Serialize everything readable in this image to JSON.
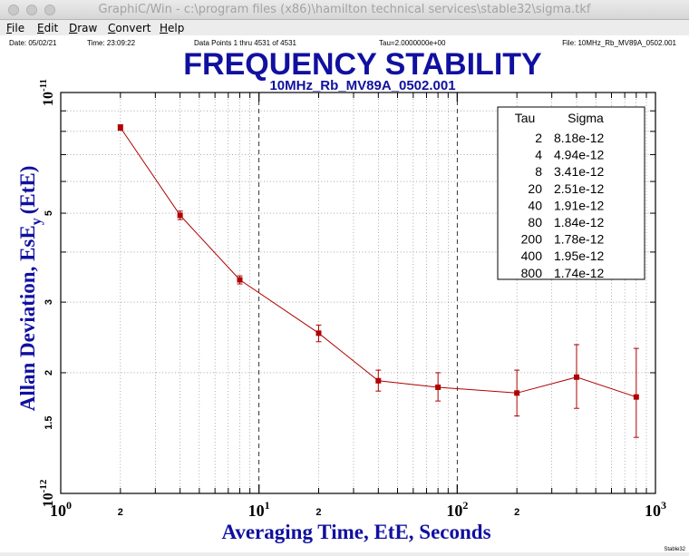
{
  "window": {
    "title": "GraphiC/Win - c:\\program files (x86)\\hamilton technical services\\stable32\\sigma.tkf"
  },
  "menu": [
    {
      "label": "File",
      "key": "F",
      "rest": "ile"
    },
    {
      "label": "Edit",
      "key": "E",
      "rest": "dit"
    },
    {
      "label": "Draw",
      "key": "D",
      "rest": "raw"
    },
    {
      "label": "Convert",
      "key": "C",
      "rest": "onvert"
    },
    {
      "label": "Help",
      "key": "H",
      "rest": "elp"
    }
  ],
  "header": {
    "date": "Date: 05/02/21",
    "time": "Time: 23:09:22",
    "points": "Data Points 1 thru 4531 of 4531",
    "tau": "Tau=2.0000000e+00",
    "file": "File: 10MHz_Rb_MV89A_0502.001"
  },
  "footer": {
    "tag": "Stable32"
  },
  "colors": {
    "title": "#1010a0",
    "series": "#b00000",
    "axis_text": "#000000"
  },
  "chart_data": {
    "type": "scatter",
    "title": "FREQUENCY STABILITY",
    "subtitle": "10MHz_Rb_MV89A_0502.001",
    "xlabel": "Averaging Time, EtE, Seconds",
    "ylabel": "Allan Deviation, EsE",
    "ylabel_sub": "y",
    "ylabel_suffix": "(EtE)",
    "xscale": "log",
    "yscale": "log",
    "xlim": [
      1,
      1000
    ],
    "ylim": [
      1e-12,
      1e-11
    ],
    "grid": "dotted",
    "x_tick_labels": [
      {
        "value": 1,
        "base": "10",
        "exp": "0"
      },
      {
        "value": 2,
        "label": "2"
      },
      {
        "value": 10,
        "base": "10",
        "exp": "1"
      },
      {
        "value": 20,
        "label": "2"
      },
      {
        "value": 100,
        "base": "10",
        "exp": "2"
      },
      {
        "value": 200,
        "label": "2"
      },
      {
        "value": 1000,
        "base": "10",
        "exp": "3"
      }
    ],
    "y_tick_labels": [
      {
        "value": 1e-11,
        "base": "10",
        "exp": "-11"
      },
      {
        "value": 5e-12,
        "label": "5"
      },
      {
        "value": 3e-12,
        "label": "3"
      },
      {
        "value": 2e-12,
        "label": "2"
      },
      {
        "value": 1.5e-12,
        "label": "1.5"
      },
      {
        "value": 1e-12,
        "base": "10",
        "exp": "-12"
      }
    ],
    "series": [
      {
        "x": [
          2,
          4,
          8,
          20,
          40,
          80,
          200,
          400,
          800
        ],
        "y": [
          8.18e-12,
          4.94e-12,
          3.41e-12,
          2.51e-12,
          1.91e-12,
          1.84e-12,
          1.78e-12,
          1.95e-12,
          1.74e-12
        ],
        "err_low": [
          8.05e-12,
          4.82e-12,
          3.33e-12,
          2.39e-12,
          1.8e-12,
          1.7e-12,
          1.56e-12,
          1.63e-12,
          1.38e-12
        ],
        "err_high": [
          8.31e-12,
          5.06e-12,
          3.49e-12,
          2.63e-12,
          2.03e-12,
          2e-12,
          2.03e-12,
          2.35e-12,
          2.3e-12
        ]
      }
    ],
    "table": {
      "headers": [
        "Tau",
        "Sigma"
      ],
      "rows": [
        [
          "2",
          "8.18e-12"
        ],
        [
          "4",
          "4.94e-12"
        ],
        [
          "8",
          "3.41e-12"
        ],
        [
          "20",
          "2.51e-12"
        ],
        [
          "40",
          "1.91e-12"
        ],
        [
          "80",
          "1.84e-12"
        ],
        [
          "200",
          "1.78e-12"
        ],
        [
          "400",
          "1.95e-12"
        ],
        [
          "800",
          "1.74e-12"
        ]
      ]
    }
  }
}
